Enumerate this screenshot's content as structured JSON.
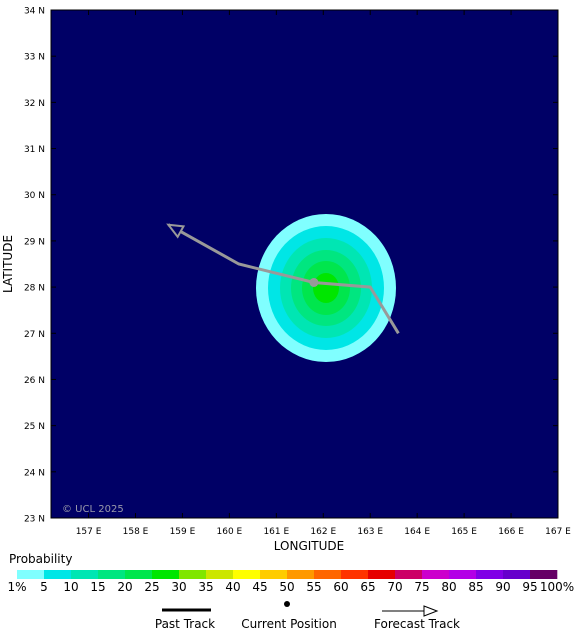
{
  "map": {
    "y_axis_title": "LATITUDE",
    "x_axis_title": "LONGITUDE",
    "lat_labels": [
      "34 N",
      "33 N",
      "32 N",
      "31 N",
      "30 N",
      "29 N",
      "28 N",
      "27 N",
      "26 N",
      "25 N",
      "24 N",
      "23 N"
    ],
    "lon_labels": [
      "157 E",
      "158 E",
      "159 E",
      "160 E",
      "161 E",
      "162 E",
      "163 E",
      "164 E",
      "165 E",
      "166 E",
      "167 E"
    ],
    "copyright": "© UCL 2025",
    "ocean_color": "#000066",
    "probability_rings": [
      {
        "min_pct": 1,
        "color": "#80ffff"
      },
      {
        "min_pct": 5,
        "color": "#00e6e6"
      },
      {
        "min_pct": 10,
        "color": "#00e6b3"
      },
      {
        "min_pct": 15,
        "color": "#00e680"
      },
      {
        "min_pct": 20,
        "color": "#00e64d"
      },
      {
        "min_pct": 25,
        "color": "#00e600"
      }
    ],
    "track_color": "#999999",
    "track_points": [
      {
        "lon": 163.6,
        "lat": 27.0
      },
      {
        "lon": 163.0,
        "lat": 28.0
      },
      {
        "lon": 161.8,
        "lat": 28.1
      },
      {
        "lon": 160.2,
        "lat": 28.5
      },
      {
        "lon": 158.7,
        "lat": 29.35
      }
    ],
    "current_position": {
      "lon": 161.8,
      "lat": 28.1
    }
  },
  "legend": {
    "title": "Probability",
    "labels": [
      "1%",
      "5",
      "10",
      "15",
      "20",
      "25",
      "30",
      "35",
      "40",
      "45",
      "50",
      "55",
      "60",
      "65",
      "70",
      "75",
      "80",
      "85",
      "90",
      "95",
      "100%"
    ],
    "colors": [
      "#80ffff",
      "#00e6e6",
      "#00e6b3",
      "#00e680",
      "#00e64d",
      "#00e600",
      "#80e600",
      "#cce600",
      "#ffff00",
      "#ffcc00",
      "#ff9900",
      "#ff6600",
      "#ff3300",
      "#e60000",
      "#cc0066",
      "#cc00cc",
      "#b300e6",
      "#8000e6",
      "#6600cc",
      "#660066"
    ],
    "past_track_label": "Past Track",
    "current_position_label": "Current Position",
    "forecast_track_label": "Forecast Track"
  }
}
